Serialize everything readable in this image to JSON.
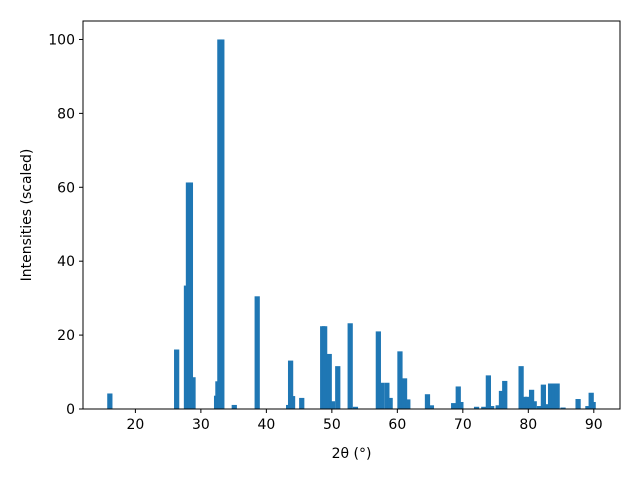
{
  "chart_data": {
    "type": "bar",
    "title": "",
    "xlabel": "2θ (°)",
    "ylabel": "Intensities (scaled)",
    "xlim": [
      12,
      94
    ],
    "ylim": [
      0,
      105
    ],
    "xticks": [
      20,
      30,
      40,
      50,
      60,
      70,
      80,
      90
    ],
    "yticks": [
      0,
      20,
      40,
      60,
      80,
      100
    ],
    "xtick_labels": [
      "20",
      "30",
      "40",
      "50",
      "60",
      "70",
      "80",
      "90"
    ],
    "ytick_labels": [
      "0",
      "20",
      "40",
      "60",
      "80",
      "100"
    ],
    "bar_width": 0.8,
    "grid": false,
    "color": "#1f77b4",
    "x": [
      16.1,
      26.3,
      27.8,
      28.1,
      28.4,
      28.8,
      32.4,
      32.6,
      32.9,
      33.2,
      35.1,
      38.6,
      43.4,
      43.7,
      44.0,
      45.4,
      48.6,
      48.9,
      49.6,
      50.1,
      50.9,
      52.8,
      53.6,
      57.1,
      57.6,
      58.4,
      58.9,
      60.4,
      60.8,
      61.1,
      61.6,
      64.6,
      65.2,
      68.6,
      69.3,
      69.7,
      72.1,
      73.2,
      73.9,
      74.4,
      75.4,
      75.9,
      76.4,
      78.9,
      79.4,
      79.9,
      80.5,
      80.9,
      81.7,
      82.3,
      82.9,
      83.4,
      83.9,
      84.4,
      85.3,
      87.6,
      89.1,
      89.6,
      89.9
    ],
    "values": [
      4.2,
      16.1,
      33.4,
      61.3,
      61.3,
      8.6,
      3.6,
      7.5,
      100,
      100,
      1.1,
      30.5,
      1.1,
      13.1,
      3.5,
      3.0,
      22.4,
      22.4,
      14.9,
      2.1,
      11.6,
      23.2,
      0.6,
      21.0,
      7.1,
      7.1,
      3.0,
      15.6,
      1.1,
      8.3,
      2.6,
      4.0,
      1.0,
      1.6,
      6.1,
      1.9,
      0.6,
      0.6,
      9.1,
      0.8,
      1.0,
      4.9,
      7.6,
      11.6,
      3.3,
      3.3,
      5.2,
      2.1,
      0.8,
      6.6,
      1.3,
      6.9,
      6.9,
      6.9,
      0.4,
      2.7,
      0.8,
      4.4,
      1.9
    ]
  }
}
